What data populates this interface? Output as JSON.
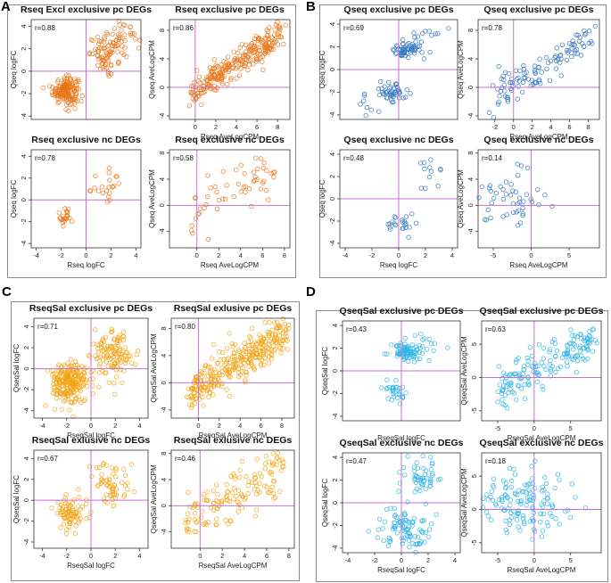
{
  "panels": [
    {
      "letter": "A",
      "color": "#e8761a"
    },
    {
      "letter": "B",
      "color": "#2e74c0"
    },
    {
      "letter": "C",
      "color": "#f2a516"
    },
    {
      "letter": "D",
      "color": "#2db4e6"
    }
  ],
  "styles": {
    "axis_line_color": "#c86fd6",
    "frame_color": "#333333"
  },
  "chart_data": [
    {
      "id": "A1",
      "panel": "A",
      "type": "scatter",
      "title": "Rseq Excl exclusive pc DEGs",
      "xlabel": "",
      "ylabel": "Qseq logFC",
      "r": "r=0.88",
      "xlim": [
        -4.3,
        4.3
      ],
      "ylim": [
        -4.3,
        4.6
      ],
      "xticks": [],
      "yticks": [
        -4,
        -2,
        0,
        2,
        4
      ],
      "clusters": [
        {
          "cx": -1.6,
          "cy": -1.7,
          "sx": 0.5,
          "sy": 0.6,
          "n": 160
        },
        {
          "cx": 1.7,
          "cy": 1.6,
          "sx": 0.7,
          "sy": 0.8,
          "n": 80
        },
        {
          "cx": 3.0,
          "cy": 3.2,
          "sx": 0.6,
          "sy": 0.7,
          "n": 25
        }
      ]
    },
    {
      "id": "A2",
      "panel": "A",
      "type": "scatter",
      "title": "Rseq exclusive pc DEGs",
      "xlabel": "Rseq AveLogCPM",
      "ylabel": "Qseq AveLogCPM",
      "r": "r=0.86",
      "xlim": [
        -2.5,
        9.2
      ],
      "ylim": [
        -4.5,
        9.5
      ],
      "xticks": [
        0,
        2,
        4,
        6,
        8
      ],
      "yticks": [
        -4,
        0,
        4,
        8
      ],
      "clusters": [
        {
          "line": true,
          "x0": -0.5,
          "x1": 8.5,
          "a": -0.6,
          "b": 1.0,
          "s": 1.1,
          "n": 260
        }
      ]
    },
    {
      "id": "A3",
      "panel": "A",
      "type": "scatter",
      "title": "Rseq exclusive nc  DEGs",
      "xlabel": "Rseq logFC",
      "ylabel": "Qseq logFC",
      "r": "r=0.78",
      "xlim": [
        -4.4,
        4.4
      ],
      "ylim": [
        -4.4,
        4.6
      ],
      "xticks": [
        -4,
        -2,
        0,
        2,
        4
      ],
      "yticks": [
        -4,
        -2,
        0,
        2,
        4
      ],
      "clusters": [
        {
          "cx": -1.6,
          "cy": -1.5,
          "sx": 0.4,
          "sy": 0.5,
          "n": 22
        },
        {
          "cx": 1.9,
          "cy": 1.3,
          "sx": 0.8,
          "sy": 0.8,
          "n": 22
        }
      ]
    },
    {
      "id": "A4",
      "panel": "A",
      "type": "scatter",
      "title": "Rseq exclusive nc DEGs",
      "xlabel": "Rseq AveLogCPM",
      "ylabel": "Qseq AveLogCPM",
      "r": "r=0.58",
      "xlim": [
        -2.5,
        8.5
      ],
      "ylim": [
        -6.5,
        8.5
      ],
      "xticks": [
        0,
        2,
        4,
        6,
        8
      ],
      "yticks": [
        -4,
        0,
        4,
        8
      ],
      "clusters": [
        {
          "line": true,
          "x0": -0.8,
          "x1": 7.0,
          "a": -1.2,
          "b": 0.9,
          "s": 1.9,
          "n": 55
        }
      ]
    },
    {
      "id": "B1",
      "panel": "B",
      "type": "scatter",
      "title": "Qseq exclusive pc DEGs",
      "xlabel": "",
      "ylabel": "Qseq logFC",
      "r": "r=0.69",
      "xlim": [
        -4.4,
        4.4
      ],
      "ylim": [
        -4.4,
        4.4
      ],
      "xticks": [],
      "yticks": [
        -4,
        -2,
        0,
        2,
        4
      ],
      "clusters": [
        {
          "cx": 0.7,
          "cy": 1.8,
          "sx": 0.5,
          "sy": 0.4,
          "n": 60
        },
        {
          "cx": -0.6,
          "cy": -1.9,
          "sx": 0.5,
          "sy": 0.5,
          "n": 45
        },
        {
          "cx": 1.8,
          "cy": 3.0,
          "sx": 1.0,
          "sy": 0.7,
          "n": 10
        },
        {
          "cx": -2.0,
          "cy": -2.8,
          "sx": 1.0,
          "sy": 0.7,
          "n": 8
        }
      ]
    },
    {
      "id": "B2",
      "panel": "B",
      "type": "scatter",
      "title": "Qseq exclusive pc DEGs",
      "xlabel": "Rseq AveLogCPM",
      "ylabel": "Qseq AveLogCPM",
      "r": "r=0.78",
      "xlim": [
        -3.8,
        9.2
      ],
      "ylim": [
        -4.5,
        9.5
      ],
      "xticks": [
        -2,
        0,
        2,
        4,
        6,
        8
      ],
      "yticks": [
        -4,
        0,
        4,
        8
      ],
      "clusters": [
        {
          "line": true,
          "x0": -2.5,
          "x1": 8.5,
          "a": 0.3,
          "b": 0.8,
          "s": 1.3,
          "n": 110
        }
      ]
    },
    {
      "id": "B3",
      "panel": "B",
      "type": "scatter",
      "title": "Qseq exclusive nc DEGs",
      "xlabel": "Rseq logFC",
      "ylabel": "Qseq logFC",
      "r": "r=0.48",
      "xlim": [
        -4.4,
        4.4
      ],
      "ylim": [
        -4.4,
        4.4
      ],
      "xticks": [
        -4,
        -2,
        0,
        2,
        4
      ],
      "yticks": [
        -4,
        -2,
        0,
        2,
        4
      ],
      "clusters": [
        {
          "cx": 0.2,
          "cy": -2.3,
          "sx": 0.6,
          "sy": 0.6,
          "n": 22
        },
        {
          "cx": 2.1,
          "cy": 2.4,
          "sx": 0.6,
          "sy": 0.7,
          "n": 12
        }
      ]
    },
    {
      "id": "B4",
      "panel": "B",
      "type": "scatter",
      "title": "Qseq exclusive nc DEGs",
      "xlabel": "Rseq AveLogCPM",
      "ylabel": "Qseq AveLogCPM",
      "r": "r=0.14",
      "xlim": [
        -7,
        9
      ],
      "ylim": [
        -6.5,
        8.5
      ],
      "xticks": [
        -5,
        0,
        5
      ],
      "yticks": [
        -4,
        0,
        4,
        8
      ],
      "clusters": [
        {
          "cx": -2.5,
          "cy": 0.8,
          "sx": 2.6,
          "sy": 2.4,
          "n": 50
        }
      ]
    },
    {
      "id": "C1",
      "panel": "C",
      "type": "scatter",
      "title": "RseqSal exclusive pc DEGs",
      "xlabel": "RseqSal logFC",
      "ylabel": "QseqSal logFC",
      "r": "r=0.71",
      "xlim": [
        -4.7,
        4.7
      ],
      "ylim": [
        -4.7,
        4.8
      ],
      "xticks": [
        -4,
        -2,
        0,
        2,
        4
      ],
      "yticks": [
        -4,
        -2,
        0,
        2,
        4
      ],
      "clusters": [
        {
          "cx": -1.8,
          "cy": -1.3,
          "sx": 0.7,
          "sy": 1.1,
          "n": 230
        },
        {
          "cx": 1.9,
          "cy": 1.4,
          "sx": 0.8,
          "sy": 1.1,
          "n": 120
        }
      ]
    },
    {
      "id": "C2",
      "panel": "C",
      "type": "scatter",
      "title": "RseqSal exlusive pc DEGs",
      "xlabel": "RseqSal AveLogCPM",
      "ylabel": "QseqSal AveLogCPM",
      "r": "r=0.80",
      "xlim": [
        -2.6,
        9.2
      ],
      "ylim": [
        -5.2,
        9.5
      ],
      "xticks": [
        0,
        2,
        4,
        6,
        8
      ],
      "yticks": [
        -4,
        0,
        4,
        8
      ],
      "clusters": [
        {
          "line": true,
          "x0": -0.8,
          "x1": 8.5,
          "a": -0.8,
          "b": 1.0,
          "s": 1.5,
          "n": 330
        }
      ]
    },
    {
      "id": "C3",
      "panel": "C",
      "type": "scatter",
      "title": "RseqSal exlusive nc DEGs",
      "xlabel": "RseqSal logFC",
      "ylabel": "QseqSal logFC",
      "r": "r=0.67",
      "xlim": [
        -4.7,
        4.7
      ],
      "ylim": [
        -4.6,
        4.8
      ],
      "xticks": [
        -4,
        -2,
        0,
        2,
        4
      ],
      "yticks": [
        -4,
        -2,
        0,
        2,
        4
      ],
      "clusters": [
        {
          "cx": -1.7,
          "cy": -1.3,
          "sx": 0.6,
          "sy": 0.9,
          "n": 80
        },
        {
          "cx": 1.9,
          "cy": 1.4,
          "sx": 0.8,
          "sy": 1.1,
          "n": 60
        }
      ]
    },
    {
      "id": "C4",
      "panel": "C",
      "type": "scatter",
      "title": "RseqSal exlusive nc DEGs",
      "xlabel": "RseqSal AveLogCPM",
      "ylabel": "QseqSal AveLogCPM",
      "r": "r=0.46",
      "xlim": [
        -2.6,
        8.5
      ],
      "ylim": [
        -6.5,
        8.5
      ],
      "xticks": [
        0,
        2,
        4,
        6,
        8
      ],
      "yticks": [
        -4,
        0,
        4,
        8
      ],
      "clusters": [
        {
          "line": true,
          "x0": -1.5,
          "x1": 7.5,
          "a": -1.0,
          "b": 0.8,
          "s": 2.4,
          "n": 140
        }
      ]
    },
    {
      "id": "D1",
      "panel": "D",
      "type": "scatter",
      "title": "QseqSal exclusive pc DEGs",
      "xlabel": "RseqSal logFC",
      "ylabel": "QseqSal logFC",
      "r": "r=0.43",
      "xlim": [
        -4.4,
        4.4
      ],
      "ylim": [
        -4.4,
        4.4
      ],
      "xticks": [],
      "yticks": [
        -4,
        -2,
        0,
        2,
        4
      ],
      "clusters": [
        {
          "cx": 0.6,
          "cy": 1.8,
          "sx": 0.6,
          "sy": 0.4,
          "n": 80
        },
        {
          "cx": -0.6,
          "cy": -1.8,
          "sx": 0.4,
          "sy": 0.5,
          "n": 30
        },
        {
          "cx": 2.0,
          "cy": 2.2,
          "sx": 1.0,
          "sy": 0.6,
          "n": 15
        }
      ]
    },
    {
      "id": "D2",
      "panel": "D",
      "type": "scatter",
      "title": "QseqSal exclusive pc DEGs",
      "xlabel": "RseqSal AveLogCPM",
      "ylabel": "QseqSal AveLogCPM",
      "r": "r=0.63",
      "xlim": [
        -7.2,
        9.2
      ],
      "ylim": [
        -6.5,
        8.5
      ],
      "xticks": [
        -5,
        0,
        5
      ],
      "yticks": [
        -5,
        0,
        5
      ],
      "clusters": [
        {
          "line": true,
          "x0": -5,
          "x1": 8.5,
          "a": 1.0,
          "b": 0.6,
          "s": 1.6,
          "n": 170
        }
      ]
    },
    {
      "id": "D3",
      "panel": "D",
      "type": "scatter",
      "title": "QseqSal exclusive nc DEGs",
      "xlabel": "RseqSal logFC",
      "ylabel": "QseqSal logFC",
      "r": "r=0.47",
      "xlim": [
        -4.4,
        4.4
      ],
      "ylim": [
        -4.4,
        4.4
      ],
      "xticks": [
        -4,
        -2,
        0,
        2,
        4
      ],
      "yticks": [
        -4,
        -2,
        0,
        2,
        4
      ],
      "clusters": [
        {
          "cx": 0.3,
          "cy": -2.2,
          "sx": 1.0,
          "sy": 0.8,
          "n": 90
        },
        {
          "cx": 1.4,
          "cy": 2.0,
          "sx": 0.9,
          "sy": 0.8,
          "n": 50
        }
      ]
    },
    {
      "id": "D4",
      "panel": "D",
      "type": "scatter",
      "title": "QseqSal exclusive nc DEGs",
      "xlabel": "RseqSal AveLogCPM",
      "ylabel": "QseqSal AveLogCPM",
      "r": "r=0.18",
      "xlim": [
        -7.2,
        9.2
      ],
      "ylim": [
        -6.5,
        8.5
      ],
      "xticks": [
        -5,
        0,
        5
      ],
      "yticks": [
        -5,
        0,
        5
      ],
      "clusters": [
        {
          "cx": -1.5,
          "cy": 1.2,
          "sx": 3.0,
          "sy": 2.6,
          "n": 140
        }
      ]
    }
  ]
}
